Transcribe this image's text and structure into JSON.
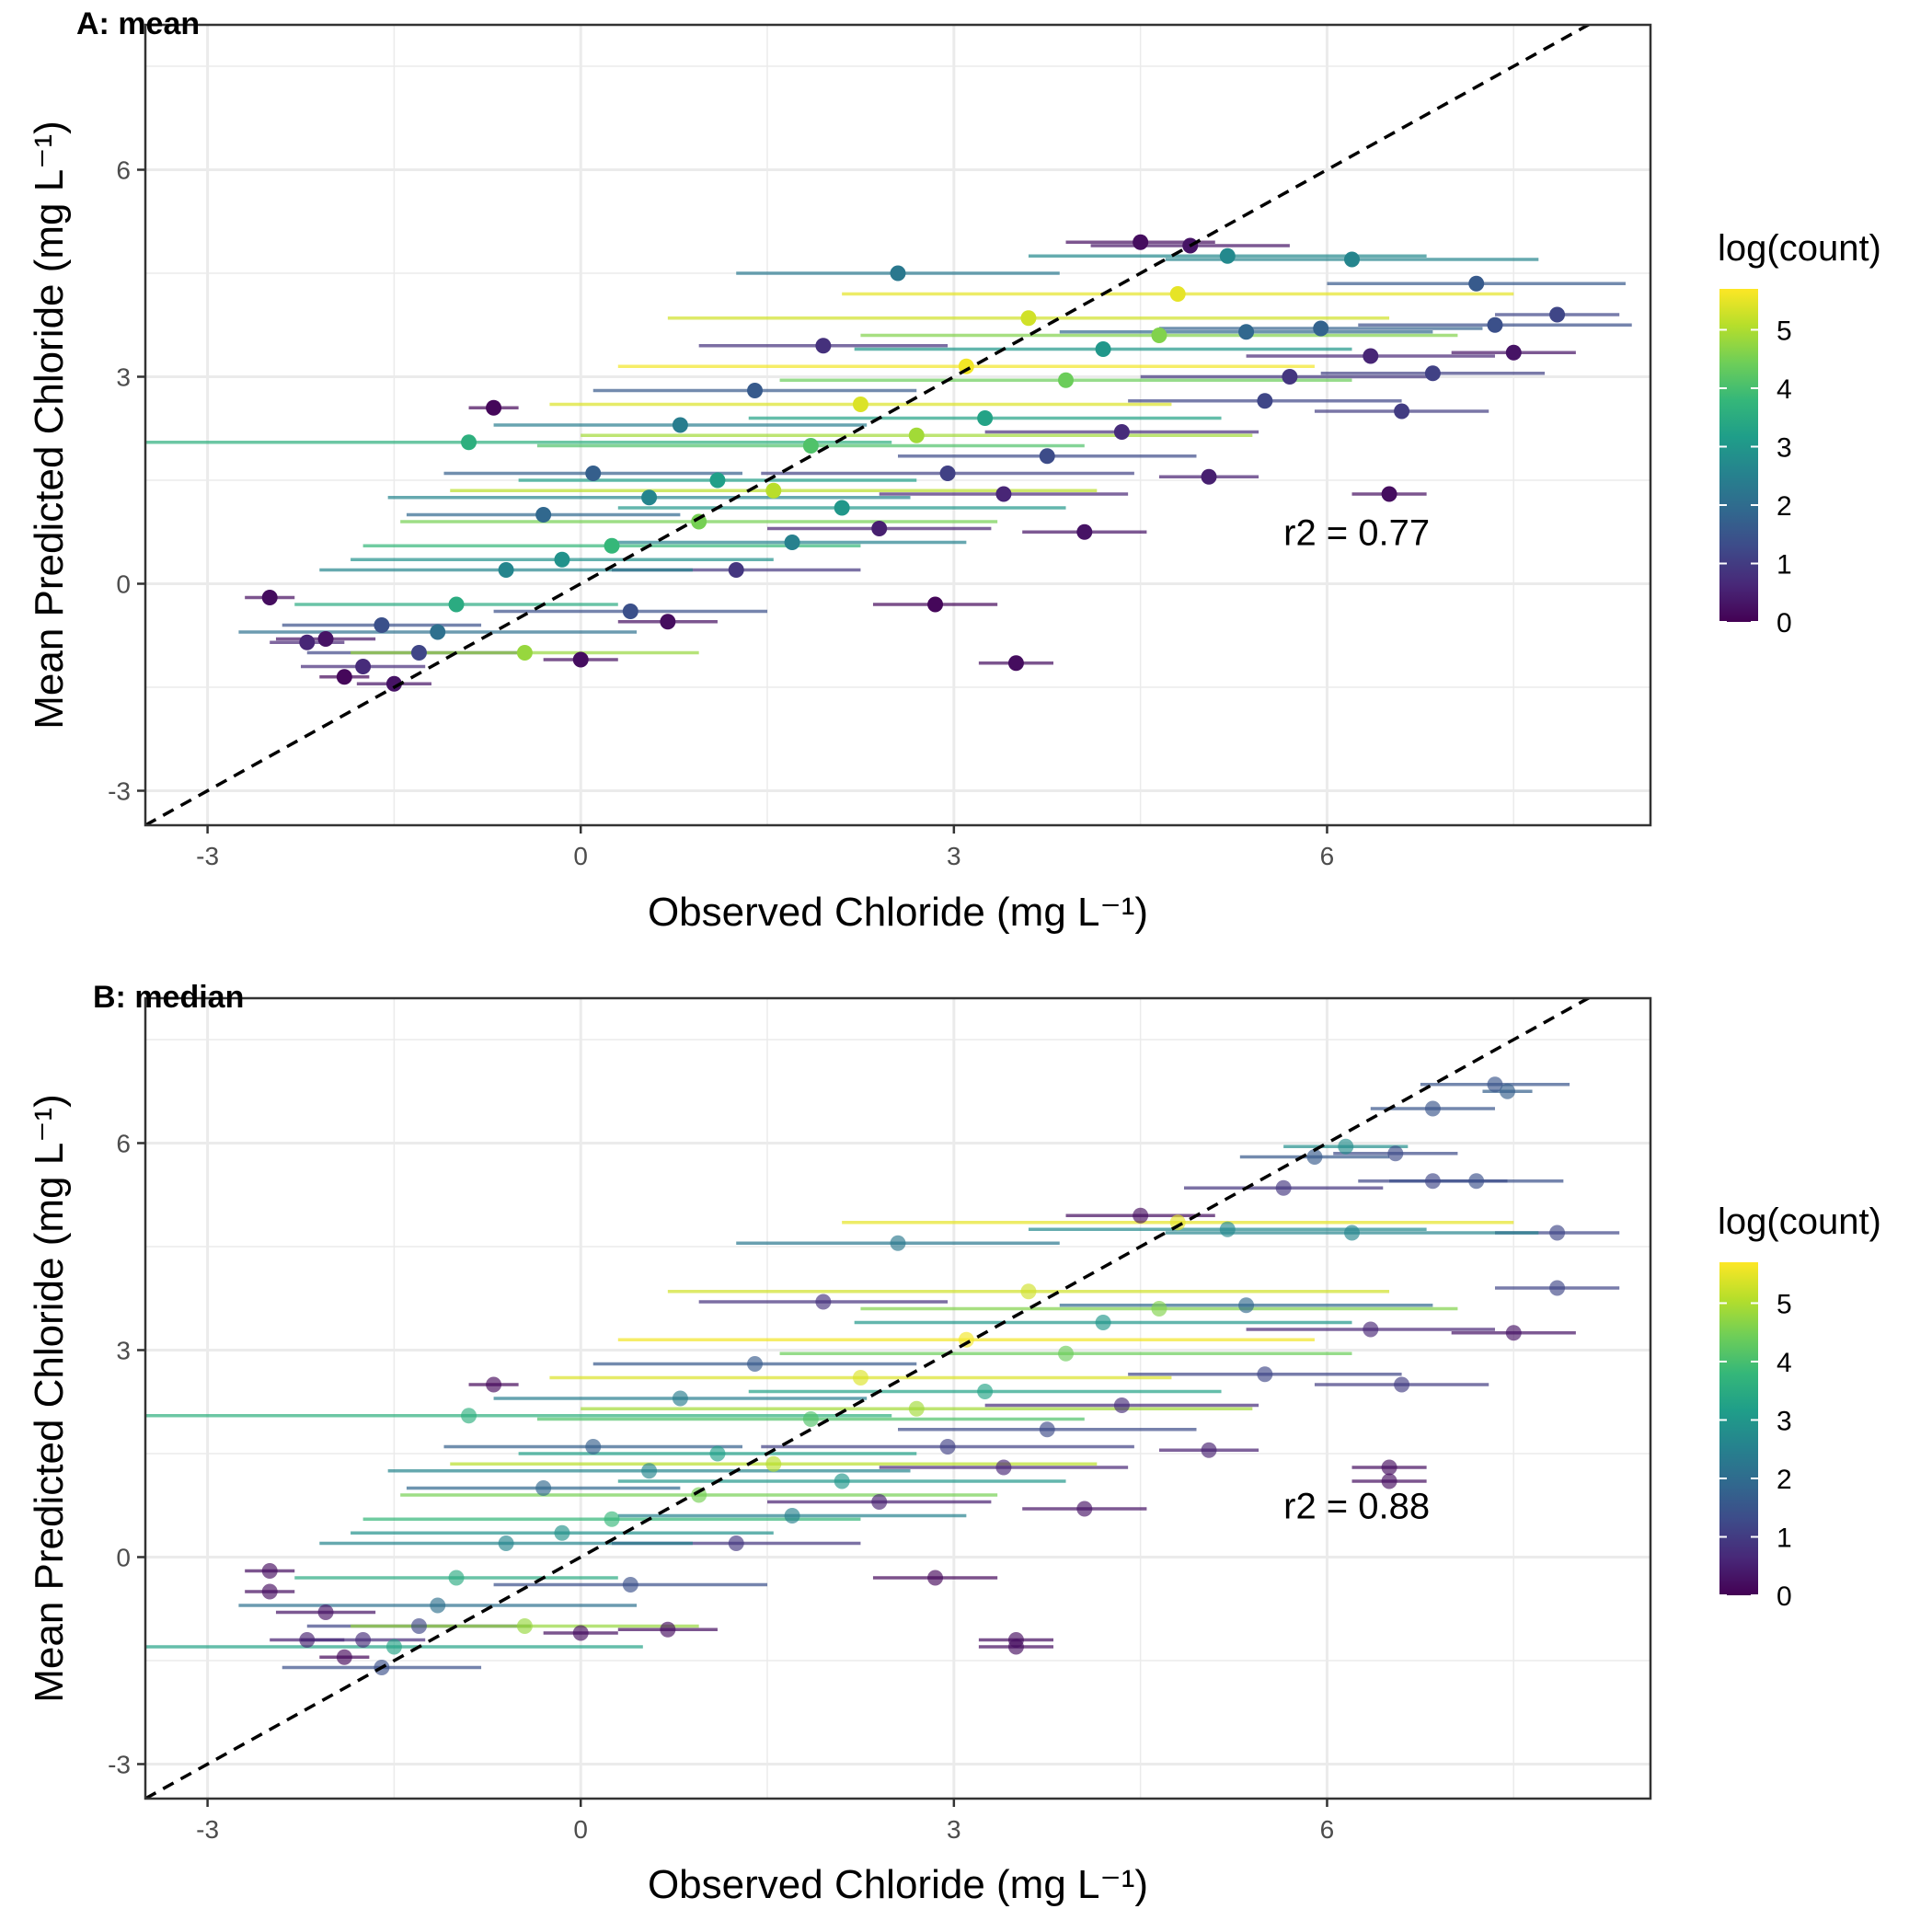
{
  "colors": {
    "viridis": [
      "#440154",
      "#482878",
      "#3e4a89",
      "#31688e",
      "#26828e",
      "#1f9e89",
      "#35b779",
      "#6ece58",
      "#b5de2b",
      "#fde725"
    ],
    "grid": "#ebebeb",
    "panel_border": "#333333",
    "reference_line": "#000000"
  },
  "chart_data": [
    {
      "type": "scatter",
      "panel_label": "A: mean",
      "xlabel": "Observed Chloride (mg L⁻¹)",
      "ylabel": "Mean Predicted Chloride (mg L⁻¹)",
      "xlim": [
        -3.5,
        8.6
      ],
      "ylim": [
        -3.5,
        8.1
      ],
      "xticks": [
        -3,
        0,
        3,
        6
      ],
      "yticks": [
        -3,
        0,
        3,
        6
      ],
      "grid": true,
      "reference_line": "y = x, dashed",
      "annotation": {
        "text": "r2 = 0.77",
        "x": 5.65,
        "y": 0.75
      },
      "color_variable": "log(count)",
      "legend": {
        "title": "log(count)",
        "ticks": [
          0,
          1,
          2,
          3,
          4,
          5
        ],
        "range": [
          0,
          5.7
        ],
        "position": "right"
      },
      "points": [
        [
          -2.5,
          -0.2,
          0.2,
          0.2
        ],
        [
          -2.2,
          -0.85,
          0.3,
          0.6
        ],
        [
          -2.05,
          -0.8,
          0.4,
          0.3
        ],
        [
          -1.9,
          -1.35,
          0.2,
          0.1
        ],
        [
          -1.75,
          -1.2,
          0.5,
          0.7
        ],
        [
          -1.6,
          -0.6,
          0.8,
          1.4
        ],
        [
          -1.5,
          -1.45,
          0.3,
          0.3
        ],
        [
          -1.3,
          -1.0,
          0.9,
          1.2
        ],
        [
          -1.15,
          -0.7,
          1.6,
          2.1
        ],
        [
          -1.0,
          -0.3,
          1.3,
          3.5
        ],
        [
          -0.9,
          2.05,
          3.4,
          3.6
        ],
        [
          -0.7,
          2.55,
          0.2,
          0.1
        ],
        [
          -0.6,
          0.2,
          1.5,
          2.6
        ],
        [
          -0.45,
          -1.0,
          1.4,
          4.8
        ],
        [
          -0.3,
          1.0,
          1.1,
          1.9
        ],
        [
          -0.15,
          0.35,
          1.7,
          2.9
        ],
        [
          0.0,
          -1.1,
          0.3,
          0.2
        ],
        [
          0.1,
          1.6,
          1.2,
          1.7
        ],
        [
          0.25,
          0.55,
          2.0,
          3.8
        ],
        [
          0.4,
          -0.4,
          1.1,
          1.4
        ],
        [
          0.55,
          1.25,
          2.1,
          2.6
        ],
        [
          0.7,
          -0.55,
          0.4,
          0.2
        ],
        [
          0.8,
          2.3,
          1.5,
          2.4
        ],
        [
          0.95,
          0.9,
          2.4,
          4.5
        ],
        [
          1.1,
          1.5,
          1.6,
          3.2
        ],
        [
          1.25,
          0.2,
          1.0,
          0.9
        ],
        [
          1.4,
          2.8,
          1.3,
          1.6
        ],
        [
          1.55,
          1.35,
          2.6,
          5.1
        ],
        [
          1.7,
          0.6,
          1.4,
          2.5
        ],
        [
          1.85,
          2.0,
          2.2,
          4.1
        ],
        [
          1.95,
          3.45,
          1.0,
          0.8
        ],
        [
          2.1,
          1.1,
          1.8,
          3.0
        ],
        [
          2.25,
          2.6,
          2.5,
          5.4
        ],
        [
          2.4,
          0.8,
          0.9,
          0.5
        ],
        [
          2.55,
          4.5,
          1.3,
          2.3
        ],
        [
          2.7,
          2.15,
          2.7,
          4.9
        ],
        [
          2.85,
          -0.3,
          0.5,
          0.1
        ],
        [
          2.95,
          1.6,
          1.5,
          1.1
        ],
        [
          3.1,
          3.15,
          2.8,
          5.6
        ],
        [
          3.25,
          2.4,
          1.9,
          3.3
        ],
        [
          3.4,
          1.3,
          1.0,
          0.6
        ],
        [
          3.5,
          -1.15,
          0.3,
          0.2
        ],
        [
          3.6,
          3.85,
          2.9,
          5.3
        ],
        [
          3.75,
          1.85,
          1.2,
          1.3
        ],
        [
          3.9,
          2.95,
          2.3,
          4.4
        ],
        [
          4.05,
          0.75,
          0.5,
          0.3
        ],
        [
          4.2,
          3.4,
          2.0,
          3.0
        ],
        [
          4.35,
          2.2,
          1.1,
          0.7
        ],
        [
          4.5,
          4.95,
          0.6,
          0.2
        ],
        [
          4.65,
          3.6,
          2.4,
          4.6
        ],
        [
          4.8,
          4.2,
          2.7,
          5.5
        ],
        [
          4.9,
          4.9,
          0.8,
          0.3
        ],
        [
          5.05,
          1.55,
          0.4,
          0.5
        ],
        [
          5.2,
          4.75,
          1.6,
          2.7
        ],
        [
          5.35,
          3.65,
          1.5,
          1.9
        ],
        [
          5.5,
          2.65,
          1.1,
          1.2
        ],
        [
          5.7,
          3.0,
          1.2,
          0.9
        ],
        [
          5.95,
          3.7,
          1.3,
          1.8
        ],
        [
          6.2,
          4.7,
          1.5,
          2.6
        ],
        [
          6.35,
          3.3,
          1.0,
          0.6
        ],
        [
          6.5,
          1.3,
          0.3,
          0.2
        ],
        [
          6.6,
          2.5,
          0.7,
          1.0
        ],
        [
          6.85,
          3.05,
          0.9,
          1.1
        ],
        [
          7.2,
          4.35,
          1.2,
          1.6
        ],
        [
          7.35,
          3.75,
          1.1,
          1.4
        ],
        [
          7.5,
          3.35,
          0.5,
          0.3
        ],
        [
          7.85,
          3.9,
          0.5,
          1.2
        ]
      ]
    },
    {
      "type": "scatter",
      "panel_label": "B: median",
      "xlabel": "Observed Chloride (mg L⁻¹)",
      "ylabel": "Mean Predicted Chloride (mg L⁻¹)",
      "xlim": [
        -3.5,
        8.6
      ],
      "ylim": [
        -3.5,
        8.1
      ],
      "xticks": [
        -3,
        0,
        3,
        6
      ],
      "yticks": [
        -3,
        0,
        3,
        6
      ],
      "grid": true,
      "reference_line": "y = x, dashed",
      "annotation": {
        "text": "r2 = 0.88",
        "x": 5.65,
        "y": 0.75
      },
      "color_variable": "log(count)",
      "legend": {
        "title": "log(count)",
        "ticks": [
          0,
          1,
          2,
          3,
          4,
          5
        ],
        "range": [
          0,
          5.7
        ],
        "position": "right"
      },
      "points": [
        [
          -2.5,
          -0.2,
          0.2,
          0.2
        ],
        [
          -2.5,
          -0.5,
          0.2,
          0.2
        ],
        [
          -2.2,
          -1.2,
          0.3,
          0.5
        ],
        [
          -2.05,
          -0.8,
          0.4,
          0.3
        ],
        [
          -1.9,
          -1.45,
          0.2,
          0.1
        ],
        [
          -1.75,
          -1.2,
          0.5,
          0.7
        ],
        [
          -1.6,
          -1.6,
          0.8,
          1.4
        ],
        [
          -1.5,
          -1.3,
          2.0,
          3.3
        ],
        [
          -1.3,
          -1.0,
          0.9,
          1.2
        ],
        [
          -1.15,
          -0.7,
          1.6,
          2.1
        ],
        [
          -1.0,
          -0.3,
          1.3,
          3.5
        ],
        [
          -0.9,
          2.05,
          3.4,
          3.6
        ],
        [
          -0.7,
          2.5,
          0.2,
          0.1
        ],
        [
          -0.6,
          0.2,
          1.5,
          2.6
        ],
        [
          -0.45,
          -1.0,
          1.4,
          4.8
        ],
        [
          -0.3,
          1.0,
          1.1,
          1.9
        ],
        [
          -0.15,
          0.35,
          1.7,
          2.9
        ],
        [
          0.0,
          -1.1,
          0.3,
          0.2
        ],
        [
          0.1,
          1.6,
          1.2,
          1.7
        ],
        [
          0.25,
          0.55,
          2.0,
          3.8
        ],
        [
          0.4,
          -0.4,
          1.1,
          1.4
        ],
        [
          0.55,
          1.25,
          2.1,
          2.6
        ],
        [
          0.7,
          -1.05,
          0.4,
          0.2
        ],
        [
          0.8,
          2.3,
          1.5,
          2.4
        ],
        [
          0.95,
          0.9,
          2.4,
          4.5
        ],
        [
          1.1,
          1.5,
          1.6,
          3.2
        ],
        [
          1.25,
          0.2,
          1.0,
          0.9
        ],
        [
          1.4,
          2.8,
          1.3,
          1.6
        ],
        [
          1.55,
          1.35,
          2.6,
          5.1
        ],
        [
          1.7,
          0.6,
          1.4,
          2.5
        ],
        [
          1.85,
          2.0,
          2.2,
          4.1
        ],
        [
          1.95,
          3.7,
          1.0,
          0.8
        ],
        [
          2.1,
          1.1,
          1.8,
          3.0
        ],
        [
          2.25,
          2.6,
          2.5,
          5.4
        ],
        [
          2.4,
          0.8,
          0.9,
          0.5
        ],
        [
          2.55,
          4.55,
          1.3,
          2.3
        ],
        [
          2.7,
          2.15,
          2.7,
          4.9
        ],
        [
          2.85,
          -0.3,
          0.5,
          0.1
        ],
        [
          2.95,
          1.6,
          1.5,
          1.1
        ],
        [
          3.1,
          3.15,
          2.8,
          5.6
        ],
        [
          3.25,
          2.4,
          1.9,
          3.3
        ],
        [
          3.4,
          1.3,
          1.0,
          0.6
        ],
        [
          3.5,
          -1.2,
          0.3,
          0.2
        ],
        [
          3.5,
          -1.3,
          0.3,
          0.2
        ],
        [
          3.6,
          3.85,
          2.9,
          5.3
        ],
        [
          3.75,
          1.85,
          1.2,
          1.3
        ],
        [
          3.9,
          2.95,
          2.3,
          4.4
        ],
        [
          4.05,
          0.7,
          0.5,
          0.3
        ],
        [
          4.2,
          3.4,
          2.0,
          3.0
        ],
        [
          4.35,
          2.2,
          1.1,
          0.7
        ],
        [
          4.5,
          4.95,
          0.6,
          0.2
        ],
        [
          4.65,
          3.6,
          2.4,
          4.6
        ],
        [
          4.8,
          4.85,
          2.7,
          5.5
        ],
        [
          5.05,
          1.55,
          0.4,
          0.5
        ],
        [
          5.2,
          4.75,
          1.6,
          2.7
        ],
        [
          5.35,
          3.65,
          1.5,
          1.9
        ],
        [
          5.5,
          2.65,
          1.1,
          1.2
        ],
        [
          5.65,
          5.35,
          0.8,
          0.9
        ],
        [
          5.9,
          5.8,
          0.6,
          1.6
        ],
        [
          6.15,
          5.95,
          0.5,
          2.8
        ],
        [
          6.2,
          4.7,
          1.5,
          2.6
        ],
        [
          6.35,
          3.3,
          1.0,
          0.6
        ],
        [
          6.5,
          1.3,
          0.3,
          0.2
        ],
        [
          6.5,
          1.1,
          0.3,
          0.2
        ],
        [
          6.55,
          5.85,
          0.5,
          1.3
        ],
        [
          6.6,
          2.5,
          0.7,
          1.0
        ],
        [
          6.85,
          6.5,
          0.5,
          1.5
        ],
        [
          6.85,
          5.45,
          0.6,
          1.2
        ],
        [
          7.2,
          5.45,
          0.7,
          1.4
        ],
        [
          7.35,
          6.85,
          0.6,
          1.5
        ],
        [
          7.45,
          6.75,
          0.2,
          1.7
        ],
        [
          7.5,
          3.25,
          0.5,
          0.3
        ],
        [
          7.85,
          4.7,
          0.5,
          1.2
        ],
        [
          7.85,
          3.9,
          0.5,
          1.2
        ]
      ]
    }
  ]
}
